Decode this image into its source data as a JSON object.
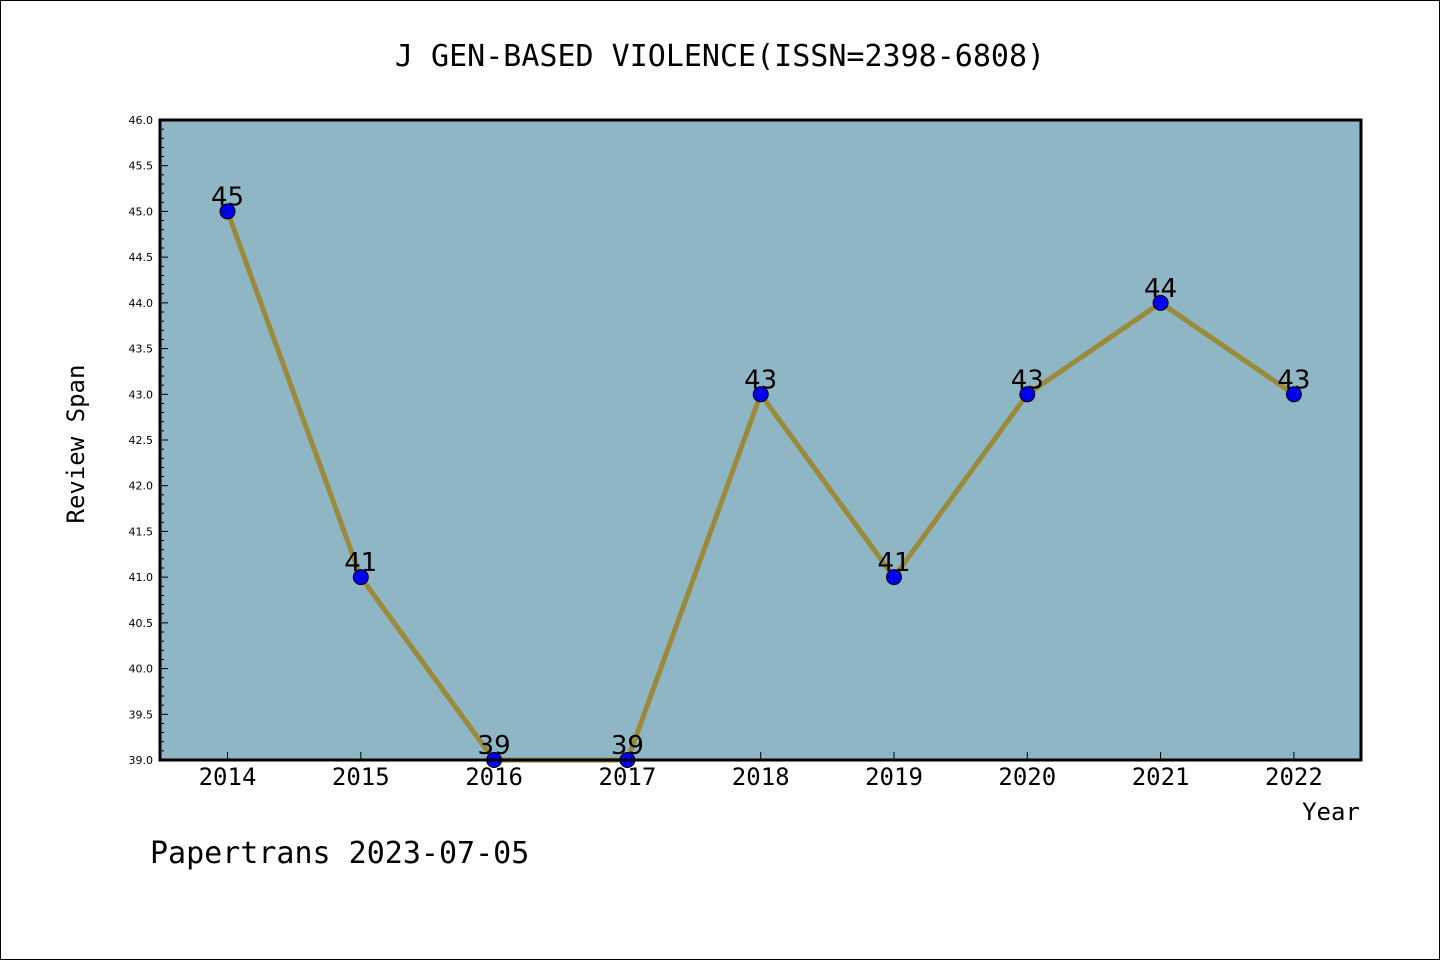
{
  "chart_data": {
    "type": "line",
    "title": "J GEN-BASED VIOLENCE(ISSN=2398-6808)",
    "xlabel": "Year",
    "ylabel": "Review Span",
    "categories": [
      "2014",
      "2015",
      "2016",
      "2017",
      "2018",
      "2019",
      "2020",
      "2021",
      "2022"
    ],
    "values": [
      45,
      41,
      39,
      39,
      43,
      41,
      43,
      44,
      43
    ],
    "data_labels": [
      "45",
      "41",
      "39",
      "39",
      "43",
      "41",
      "43",
      "44",
      "43"
    ],
    "ylim": [
      39.0,
      46.0
    ],
    "yticks": [
      "39.0",
      "39.5",
      "40.0",
      "40.5",
      "41.0",
      "41.5",
      "42.0",
      "42.5",
      "43.0",
      "43.5",
      "44.0",
      "44.5",
      "45.0",
      "45.5",
      "46.0"
    ],
    "grid": false,
    "footer": "Papertrans 2023-07-05",
    "colors": {
      "plot_background": "#8fb6c4",
      "line": "#9a8a3a",
      "marker": "#0000ee",
      "axes": "#000000"
    }
  }
}
